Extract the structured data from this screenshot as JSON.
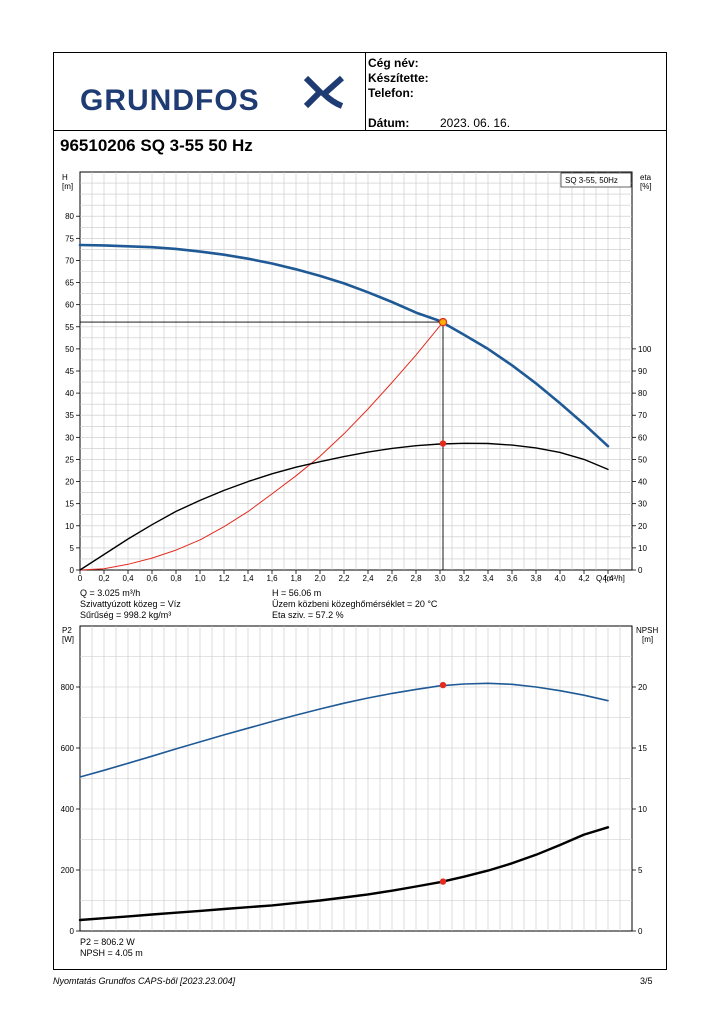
{
  "header": {
    "logo_text": "GRUNDFOS",
    "company_label": "Cég név:",
    "prepared_label": "Készítette:",
    "phone_label": "Telefon:",
    "date_label": "Dátum:",
    "date_value": "2023. 06. 16."
  },
  "title": "96510206 SQ 3-55 50 Hz",
  "colors": {
    "head_curve": "#1f5a96",
    "efficiency_curve": "#000000",
    "shaft_curve": "#e32b1f",
    "power_curve": "#1f5a96",
    "npsh_curve": "#000000",
    "duty_point": "#e32b1f",
    "duty_point_highlight": "#ffb000",
    "grid": "#c8c8c8"
  },
  "top_chart": {
    "ylabel_left": "H\n[m]",
    "ylabel_right": "eta\n[%]",
    "xlabel": "Q [m³/h]",
    "legend": "SQ 3-55, 50Hz",
    "left_ticks": [
      "0",
      "5",
      "10",
      "15",
      "20",
      "25",
      "30",
      "35",
      "40",
      "45",
      "50",
      "55",
      "60",
      "65",
      "70",
      "75",
      "80"
    ],
    "right_ticks": [
      "0",
      "10",
      "20",
      "30",
      "40",
      "50",
      "60",
      "70",
      "80",
      "90",
      "100"
    ],
    "x_ticks": [
      "0",
      "0,2",
      "0,4",
      "0,6",
      "0,8",
      "1,0",
      "1,2",
      "1,4",
      "1,6",
      "1,8",
      "2,0",
      "2,2",
      "2,4",
      "2,6",
      "2,8",
      "3,0",
      "3,2",
      "3,4",
      "3,6",
      "3,8",
      "4,0",
      "4,2",
      "4,4"
    ],
    "info_left": [
      "Q = 3.025 m³/h",
      "Szivattyúzott közeg = Víz",
      "Sűrűség = 998.2 kg/m³"
    ],
    "info_right": [
      "H = 56.06 m",
      "Üzem közbeni közeghőmérséklet = 20 °C",
      "Eta sziv. = 57.2 %"
    ]
  },
  "bottom_chart": {
    "ylabel_left": "P2\n[W]",
    "ylabel_right": "NPSH\n[m]",
    "left_ticks": [
      "0",
      "200",
      "400",
      "600",
      "800"
    ],
    "right_ticks": [
      "0",
      "5",
      "10",
      "15",
      "20"
    ],
    "info": [
      "P2 = 806.2 W",
      "NPSH = 4.05 m"
    ]
  },
  "chart_data": [
    {
      "type": "line",
      "xlabel": "Q [m³/h]",
      "ylabel": "H [m]",
      "xlim": [
        0,
        4.6
      ],
      "ylim": [
        0,
        90
      ],
      "y2lim": [
        0,
        180
      ],
      "grid": true,
      "legend_position": "top-right",
      "series": [
        {
          "name": "SQ 3-55, 50Hz",
          "axis": "left",
          "x": [
            0,
            0.2,
            0.4,
            0.6,
            0.8,
            1.0,
            1.2,
            1.4,
            1.6,
            1.8,
            2.0,
            2.2,
            2.4,
            2.6,
            2.8,
            3.0,
            3.2,
            3.4,
            3.6,
            3.8,
            4.0,
            4.2,
            4.4
          ],
          "y": [
            73.5,
            73.4,
            73.2,
            73.0,
            72.6,
            72.0,
            71.3,
            70.4,
            69.3,
            68.0,
            66.5,
            64.8,
            62.8,
            60.6,
            58.2,
            56.3,
            53.2,
            50.0,
            46.3,
            42.2,
            37.7,
            33.0,
            28.0
          ]
        },
        {
          "axis": "right",
          "x": [
            0,
            0.2,
            0.4,
            0.6,
            0.8,
            1.0,
            1.2,
            1.4,
            1.6,
            1.8,
            2.0,
            2.2,
            2.4,
            2.6,
            2.8,
            3.0,
            3.2,
            3.4,
            3.6,
            3.8,
            4.0,
            4.2,
            4.4
          ],
          "y": [
            0,
            7,
            14,
            20.5,
            26.5,
            31.5,
            36,
            40,
            43.5,
            46.5,
            49,
            51.3,
            53.3,
            55,
            56.2,
            57.0,
            57.3,
            57.2,
            56.5,
            55.2,
            53.2,
            50.0,
            45.5
          ]
        },
        {
          "axis": "left",
          "x": [
            0,
            0.2,
            0.4,
            0.6,
            0.8,
            1.0,
            1.2,
            1.4,
            1.6,
            1.8,
            2.0,
            2.2,
            2.4,
            2.6,
            2.8,
            3.025
          ],
          "y": [
            0,
            0.3,
            1.3,
            2.7,
            4.5,
            6.8,
            9.8,
            13.2,
            17.2,
            21.3,
            25.7,
            30.8,
            36.4,
            42.4,
            48.6,
            56.06
          ]
        }
      ],
      "duty_point": {
        "Q": 3.025,
        "H": 56.06,
        "eta": 57.2
      }
    },
    {
      "type": "line",
      "xlabel": "Q [m³/h]",
      "ylabel": "P2 [W]",
      "xlim": [
        0,
        4.6
      ],
      "ylim": [
        0,
        1000
      ],
      "y2lim": [
        0,
        25
      ],
      "grid": true,
      "series": [
        {
          "axis": "left",
          "x": [
            0,
            0.2,
            0.4,
            0.6,
            0.8,
            1.0,
            1.2,
            1.4,
            1.6,
            1.8,
            2.0,
            2.2,
            2.4,
            2.6,
            2.8,
            3.0,
            3.2,
            3.4,
            3.6,
            3.8,
            4.0,
            4.2,
            4.4
          ],
          "y": [
            505,
            527,
            550,
            573,
            597,
            620,
            643,
            665,
            687,
            708,
            728,
            747,
            764,
            779,
            792,
            804,
            810,
            812,
            809,
            800,
            788,
            773,
            755
          ]
        },
        {
          "axis": "right",
          "x": [
            0,
            0.2,
            0.4,
            0.6,
            0.8,
            1.0,
            1.2,
            1.4,
            1.6,
            1.8,
            2.0,
            2.2,
            2.4,
            2.6,
            2.8,
            3.0,
            3.2,
            3.4,
            3.6,
            3.8,
            4.0,
            4.2,
            4.4
          ],
          "y": [
            0.9,
            1.05,
            1.2,
            1.35,
            1.5,
            1.65,
            1.8,
            1.95,
            2.1,
            2.3,
            2.5,
            2.75,
            3.0,
            3.3,
            3.65,
            4.0,
            4.45,
            4.95,
            5.55,
            6.25,
            7.05,
            7.9,
            8.5
          ]
        }
      ],
      "duty_point": {
        "Q": 3.025,
        "P2": 806.2,
        "NPSH": 4.05
      }
    }
  ],
  "footer": {
    "left": "Nyomtatás Grundfos CAPS-ből [2023.23.004]",
    "page": "3/5"
  }
}
